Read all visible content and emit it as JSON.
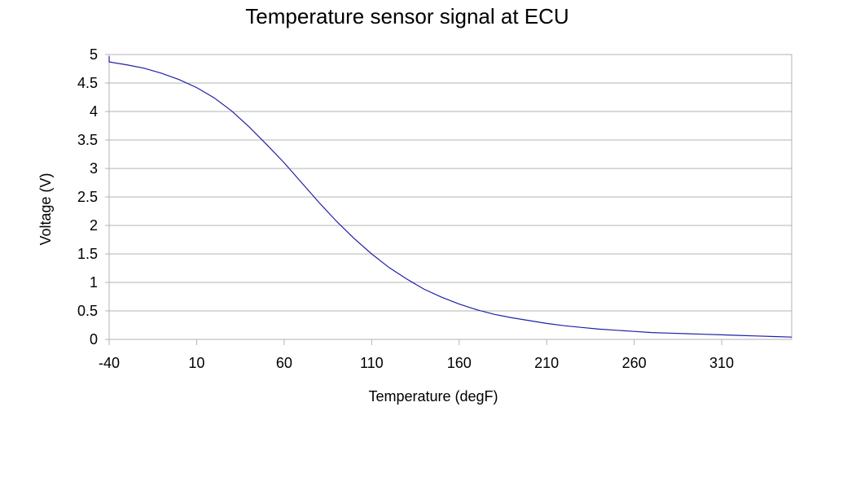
{
  "chart_data": {
    "type": "line",
    "title": "Temperature sensor signal at ECU",
    "xlabel": "Temperature (degF)",
    "ylabel": "Voltage (V)",
    "xlim": [
      -40,
      350
    ],
    "ylim": [
      0,
      5
    ],
    "x_ticks": [
      -40,
      10,
      60,
      110,
      160,
      210,
      260,
      310
    ],
    "x_tick_labels": [
      "-40",
      "10",
      "60",
      "110",
      "160",
      "210",
      "260",
      "310"
    ],
    "y_ticks": [
      0,
      0.5,
      1,
      1.5,
      2,
      2.5,
      3,
      3.5,
      4,
      4.5,
      5
    ],
    "y_tick_labels": [
      "0",
      "0.5",
      "1",
      "1.5",
      "2",
      "2.5",
      "3",
      "3.5",
      "4",
      "4.5",
      "5"
    ],
    "grid": "horizontal",
    "legend": "none",
    "series": [
      {
        "color": "#1f1fa8",
        "x": [
          -40,
          -40,
          -30,
          -20,
          -10,
          0,
          10,
          20,
          30,
          40,
          50,
          60,
          70,
          80,
          90,
          100,
          110,
          120,
          130,
          140,
          150,
          160,
          170,
          180,
          190,
          200,
          210,
          220,
          230,
          240,
          250,
          260,
          270,
          280,
          290,
          300,
          310,
          320,
          330,
          340,
          350
        ],
        "y": [
          4.97,
          4.87,
          4.82,
          4.76,
          4.67,
          4.56,
          4.42,
          4.24,
          4.01,
          3.73,
          3.42,
          3.1,
          2.75,
          2.4,
          2.07,
          1.77,
          1.5,
          1.26,
          1.06,
          0.88,
          0.74,
          0.62,
          0.52,
          0.44,
          0.38,
          0.33,
          0.28,
          0.24,
          0.21,
          0.18,
          0.16,
          0.14,
          0.12,
          0.11,
          0.1,
          0.09,
          0.08,
          0.07,
          0.06,
          0.05,
          0.04
        ]
      }
    ]
  }
}
